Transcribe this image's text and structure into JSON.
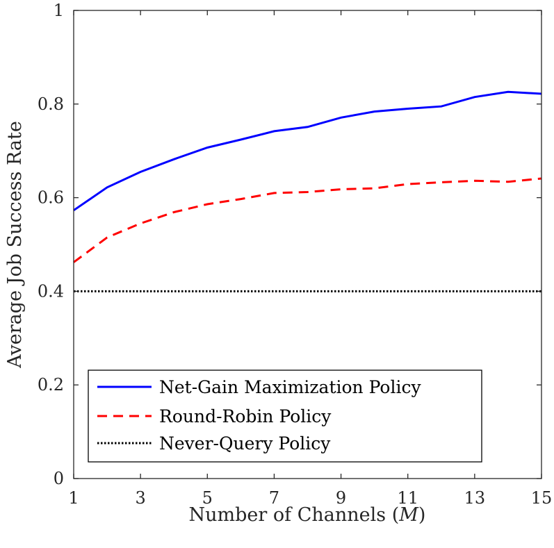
{
  "chart_data": {
    "type": "line",
    "title": "",
    "xlabel": "Number of Channels",
    "xlabel_symbol": "M",
    "ylabel": "Average Job Success Rate",
    "x": [
      1,
      2,
      3,
      4,
      5,
      6,
      7,
      8,
      9,
      10,
      11,
      12,
      13,
      14,
      15
    ],
    "xlim": [
      1,
      15
    ],
    "ylim": [
      0,
      1
    ],
    "xticks": [
      1,
      3,
      5,
      7,
      9,
      11,
      13,
      15
    ],
    "yticks": [
      0,
      0.2,
      0.4,
      0.6,
      0.8,
      1
    ],
    "ytick_labels": [
      "0",
      "0.2",
      "0.4",
      "0.6",
      "0.8",
      "1"
    ],
    "grid": false,
    "legend_position": "lower-left",
    "series": [
      {
        "name": "Net-Gain Maximization Policy",
        "color": "#0000ff",
        "style": "solid",
        "values": [
          0.573,
          0.622,
          0.655,
          0.682,
          0.707,
          0.724,
          0.742,
          0.751,
          0.771,
          0.784,
          0.79,
          0.795,
          0.815,
          0.826,
          0.822
        ]
      },
      {
        "name": "Round-Robin Policy",
        "color": "#ff0000",
        "style": "dashed",
        "values": [
          0.462,
          0.515,
          0.545,
          0.569,
          0.586,
          0.597,
          0.61,
          0.612,
          0.618,
          0.62,
          0.629,
          0.633,
          0.636,
          0.634,
          0.641
        ]
      },
      {
        "name": "Never-Query Policy",
        "color": "#000000",
        "style": "dotted",
        "values": [
          0.4,
          0.4,
          0.4,
          0.4,
          0.4,
          0.4,
          0.4,
          0.4,
          0.4,
          0.4,
          0.4,
          0.4,
          0.4,
          0.4,
          0.4
        ]
      }
    ]
  }
}
